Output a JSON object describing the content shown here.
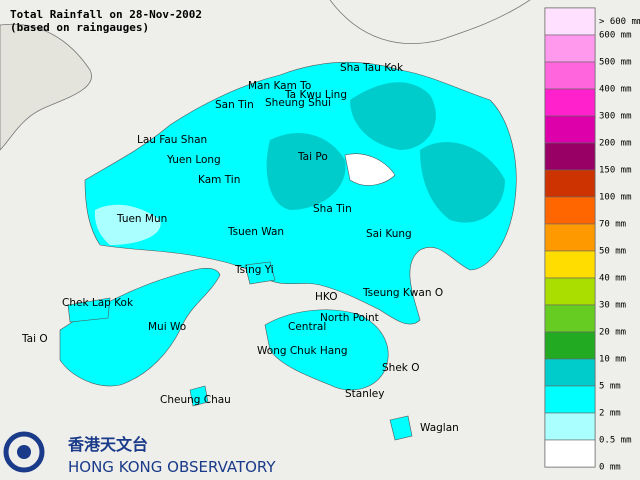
{
  "header": {
    "title": "Total Rainfall on 28-Nov-2002",
    "subtitle": "(based on raingauges)"
  },
  "places": [
    "Sha Tau Kok",
    "Man Kam To",
    "Ta Kwu Ling",
    "San Tin",
    "Sheung Shui",
    "Lau Fau Shan",
    "Yuen Long",
    "Tai Po",
    "Kam Tin",
    "Sha Tin",
    "Tuen Mun",
    "Tsuen Wan",
    "Sai Kung",
    "Tsing Yi",
    "Tseung Kwan O",
    "Chek Lap Kok",
    "HKO",
    "North Point",
    "Mui Wo",
    "Central",
    "Tai O",
    "Wong Chuk Hang",
    "Shek O",
    "Cheung Chau",
    "Stanley",
    "Waglan"
  ],
  "legend": {
    "labels": [
      "> 600 mm",
      "600 mm",
      "500 mm",
      "400 mm",
      "300 mm",
      "200 mm",
      "150 mm",
      "100 mm",
      "70 mm",
      "50 mm",
      "40 mm",
      "30 mm",
      "20 mm",
      "10 mm",
      "5 mm",
      "2 mm",
      "0.5 mm",
      "0 mm"
    ],
    "colors": [
      "#ffe0ff",
      "#ff99ee",
      "#ff66dd",
      "#ff22cc",
      "#dd00aa",
      "#990066",
      "#cc3300",
      "#ff6600",
      "#ff9900",
      "#ffdd00",
      "#aadd00",
      "#66cc22",
      "#22aa22",
      "#00cccc",
      "#00ffff",
      "#aaffff",
      "#ffffff"
    ]
  },
  "logo": {
    "chinese": "香港天文台",
    "english": "HONG KONG OBSERVATORY"
  }
}
